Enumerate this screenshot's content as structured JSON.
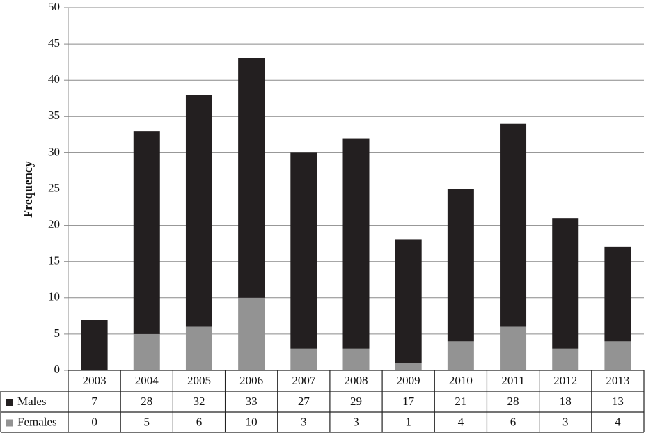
{
  "chart_data": {
    "type": "bar",
    "stacked": true,
    "y_label": "Frequency",
    "categories": [
      "2003",
      "2004",
      "2005",
      "2006",
      "2007",
      "2008",
      "2009",
      "2010",
      "2011",
      "2012",
      "2013"
    ],
    "series": [
      {
        "name": "Males",
        "color": "#231f20",
        "values": [
          7,
          28,
          32,
          33,
          27,
          29,
          17,
          21,
          28,
          18,
          13
        ]
      },
      {
        "name": "Females",
        "color": "#939393",
        "values": [
          0,
          5,
          6,
          10,
          3,
          3,
          1,
          4,
          6,
          3,
          4
        ]
      }
    ],
    "ylim": [
      0,
      50
    ],
    "yticks": [
      0,
      5,
      10,
      15,
      20,
      25,
      30,
      35,
      40,
      45,
      50
    ],
    "grid": true
  }
}
